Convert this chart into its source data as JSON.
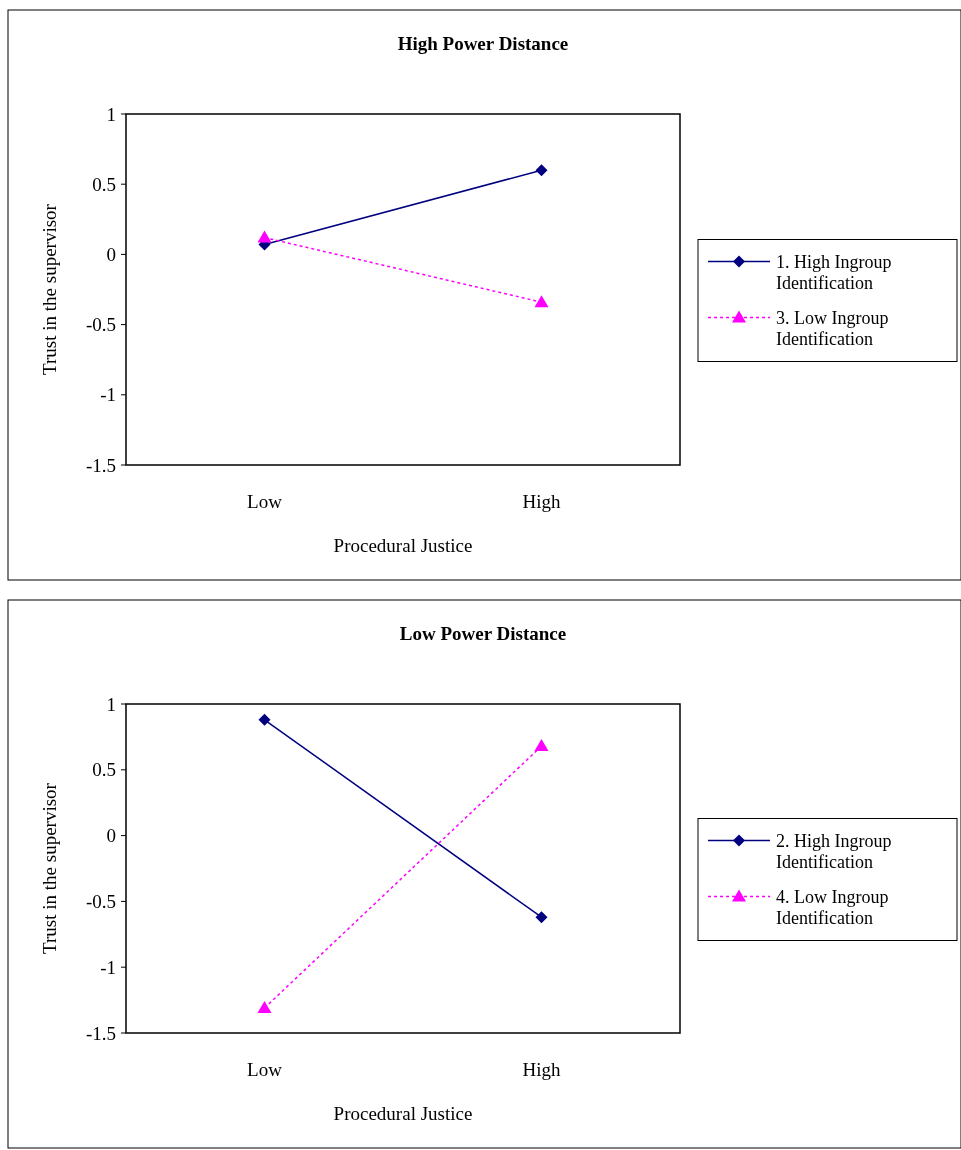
{
  "chart_data": [
    {
      "type": "line",
      "title": "High Power Distance",
      "xlabel": "Procedural Justice",
      "ylabel": "Trust in the supervisor",
      "categories": [
        "Low",
        "High"
      ],
      "ylim": [
        -1.5,
        1
      ],
      "yticks": [
        -1.5,
        -1,
        -0.5,
        0,
        0.5,
        1
      ],
      "legend": "right",
      "series": [
        {
          "name": "1. High Ingroup Identification",
          "color": "#000080",
          "values": [
            0.07,
            0.6
          ],
          "marker": "diamond",
          "line_style": "solid"
        },
        {
          "name": "3. Low Ingroup Identification",
          "color": "#ff00ff",
          "values": [
            0.12,
            -0.34
          ],
          "marker": "triangle",
          "line_style": "dotted"
        }
      ]
    },
    {
      "type": "line",
      "title": "Low Power Distance",
      "xlabel": "Procedural Justice",
      "ylabel": "Trust in the supervisor",
      "categories": [
        "Low",
        "High"
      ],
      "ylim": [
        -1.5,
        1
      ],
      "yticks": [
        -1.5,
        -1,
        -0.5,
        0,
        0.5,
        1
      ],
      "legend": "right",
      "series": [
        {
          "name": "2. High Ingroup Identification",
          "color": "#000080",
          "values": [
            0.88,
            -0.62
          ],
          "marker": "diamond",
          "line_style": "solid"
        },
        {
          "name": "4. Low Ingroup Identification",
          "color": "#ff00ff",
          "values": [
            -1.31,
            0.68
          ],
          "marker": "triangle",
          "line_style": "dotted"
        }
      ]
    }
  ]
}
